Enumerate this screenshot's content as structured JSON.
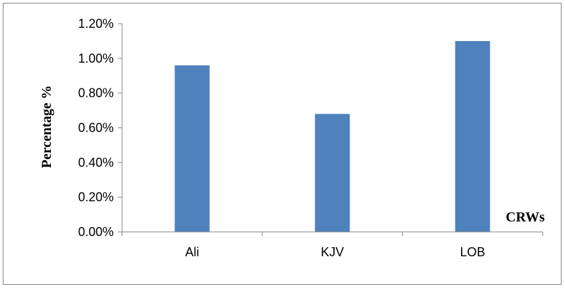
{
  "chart_data": {
    "type": "bar",
    "categories": [
      "Ali",
      "KJV",
      "LOB"
    ],
    "values": [
      0.96,
      0.68,
      1.1
    ],
    "ylabel": "Percentage %",
    "xlabel": "CRWs",
    "ylim": [
      0,
      1.2
    ],
    "yticks": [
      0,
      0.2,
      0.4,
      0.6,
      0.8,
      1.0,
      1.2
    ],
    "ytick_labels": [
      "0.00%",
      "0.20%",
      "0.40%",
      "0.60%",
      "0.80%",
      "1.00%",
      "1.20%"
    ],
    "bar_color": "#4F81BD",
    "axis_color": "#868686",
    "gridlines": false,
    "legend": "none"
  }
}
